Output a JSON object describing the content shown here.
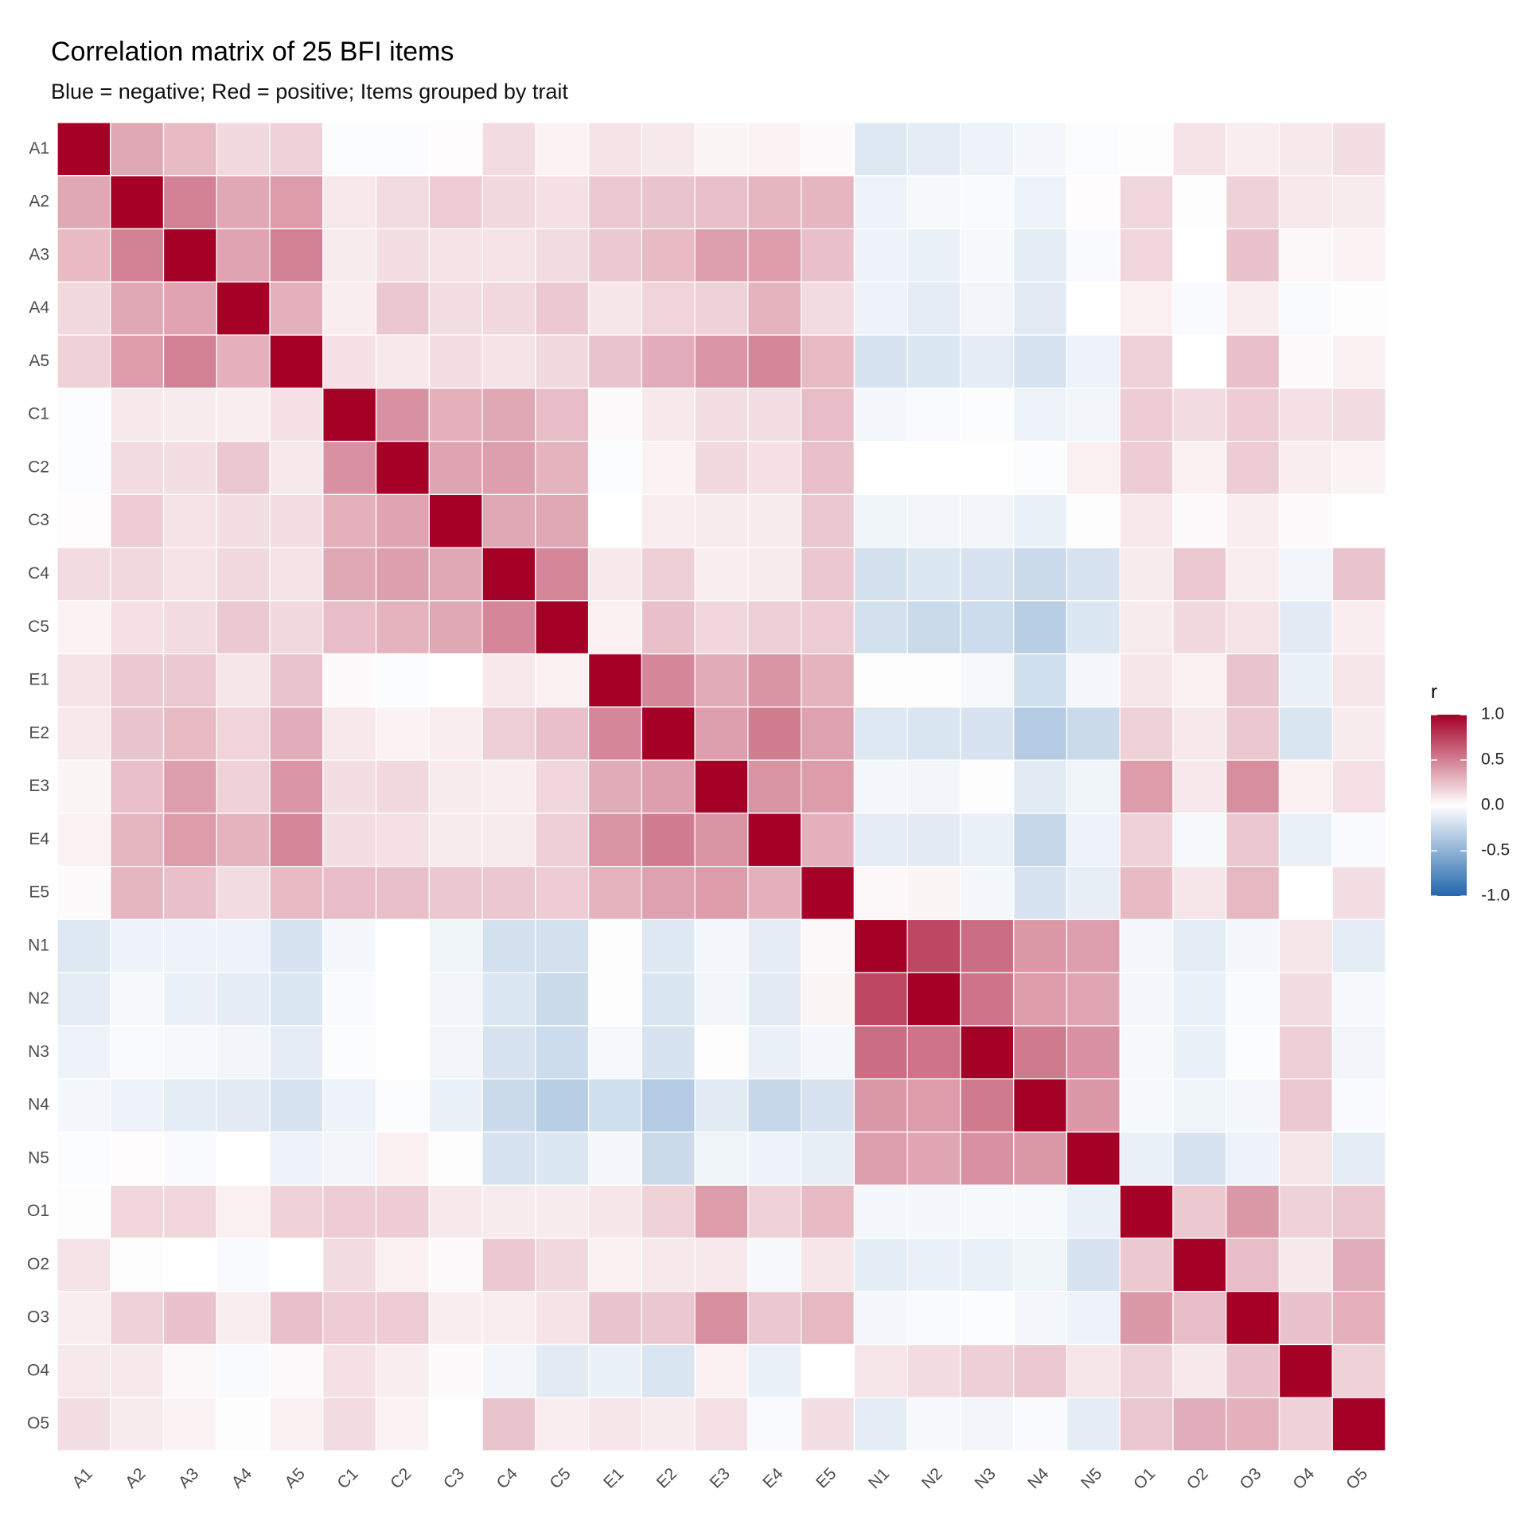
{
  "chart_data": {
    "type": "heatmap",
    "title": "Correlation matrix of 25 BFI items",
    "subtitle": "Blue = negative; Red = positive; Items grouped by trait",
    "categories": [
      "A1",
      "A2",
      "A3",
      "A4",
      "A5",
      "C1",
      "C2",
      "C3",
      "C4",
      "C5",
      "E1",
      "E2",
      "E3",
      "E4",
      "E5",
      "N1",
      "N2",
      "N3",
      "N4",
      "N5",
      "O1",
      "O2",
      "O3",
      "O4",
      "O5"
    ],
    "values": [
      [
        1,
        0.34,
        0.27,
        0.15,
        0.18,
        -0.02,
        -0.02,
        0.01,
        0.14,
        0.05,
        0.11,
        0.09,
        0.04,
        0.05,
        0.02,
        -0.15,
        -0.12,
        -0.08,
        -0.05,
        -0.02,
        -0.01,
        0.11,
        0.07,
        0.09,
        0.13
      ],
      [
        0.34,
        1,
        0.49,
        0.34,
        0.39,
        0.09,
        0.14,
        0.2,
        0.15,
        0.12,
        0.21,
        0.23,
        0.25,
        0.29,
        0.29,
        -0.08,
        -0.04,
        -0.03,
        -0.08,
        0.01,
        0.16,
        -0.01,
        0.18,
        0.09,
        0.08
      ],
      [
        0.27,
        0.49,
        1,
        0.36,
        0.5,
        0.08,
        0.13,
        0.11,
        0.11,
        0.14,
        0.21,
        0.27,
        0.38,
        0.39,
        0.25,
        -0.08,
        -0.09,
        -0.04,
        -0.12,
        -0.03,
        0.16,
        0,
        0.24,
        0.03,
        0.05
      ],
      [
        0.15,
        0.34,
        0.36,
        1,
        0.31,
        0.07,
        0.22,
        0.13,
        0.15,
        0.21,
        0.1,
        0.17,
        0.18,
        0.3,
        0.14,
        -0.08,
        -0.12,
        -0.06,
        -0.13,
        0,
        0.06,
        -0.03,
        0.07,
        -0.03,
        -0.01
      ],
      [
        0.18,
        0.39,
        0.5,
        0.31,
        1,
        0.12,
        0.09,
        0.13,
        0.11,
        0.15,
        0.23,
        0.32,
        0.41,
        0.48,
        0.27,
        -0.18,
        -0.16,
        -0.12,
        -0.18,
        -0.08,
        0.18,
        0,
        0.25,
        0.02,
        0.06
      ],
      [
        -0.02,
        0.09,
        0.08,
        0.07,
        0.12,
        1,
        0.43,
        0.31,
        0.34,
        0.26,
        0.02,
        0.09,
        0.13,
        0.13,
        0.26,
        -0.05,
        -0.03,
        -0.02,
        -0.08,
        -0.06,
        0.2,
        0.14,
        0.2,
        0.12,
        0.14
      ],
      [
        -0.02,
        0.14,
        0.13,
        0.22,
        0.09,
        0.43,
        1,
        0.36,
        0.38,
        0.3,
        -0.02,
        0.05,
        0.15,
        0.12,
        0.25,
        0,
        0,
        0,
        -0.02,
        0.06,
        0.2,
        0.06,
        0.2,
        0.07,
        0.05
      ],
      [
        0.01,
        0.2,
        0.11,
        0.13,
        0.13,
        0.31,
        0.36,
        1,
        0.34,
        0.34,
        0,
        0.07,
        0.08,
        0.08,
        0.22,
        -0.07,
        -0.06,
        -0.06,
        -0.09,
        -0.01,
        0.09,
        0.02,
        0.07,
        0.02,
        0
      ],
      [
        0.14,
        0.15,
        0.11,
        0.15,
        0.11,
        0.34,
        0.38,
        0.34,
        1,
        0.47,
        0.09,
        0.19,
        0.07,
        0.08,
        0.22,
        -0.2,
        -0.16,
        -0.18,
        -0.24,
        -0.18,
        0.08,
        0.21,
        0.07,
        -0.06,
        0.23
      ],
      [
        0.05,
        0.12,
        0.14,
        0.21,
        0.15,
        0.26,
        0.3,
        0.34,
        0.47,
        1,
        0.06,
        0.25,
        0.16,
        0.19,
        0.2,
        -0.2,
        -0.24,
        -0.23,
        -0.32,
        -0.16,
        0.08,
        0.15,
        0.11,
        -0.13,
        0.07
      ],
      [
        0.11,
        0.21,
        0.21,
        0.1,
        0.23,
        0.02,
        -0.02,
        0,
        0.09,
        0.06,
        1,
        0.47,
        0.33,
        0.42,
        0.3,
        -0.01,
        -0.01,
        -0.04,
        -0.21,
        -0.05,
        0.1,
        0.06,
        0.23,
        -0.09,
        0.1
      ],
      [
        0.09,
        0.23,
        0.27,
        0.17,
        0.32,
        0.09,
        0.05,
        0.07,
        0.19,
        0.25,
        0.47,
        1,
        0.38,
        0.51,
        0.37,
        -0.15,
        -0.17,
        -0.18,
        -0.34,
        -0.24,
        0.18,
        0.09,
        0.22,
        -0.17,
        0.08
      ],
      [
        0.04,
        0.25,
        0.38,
        0.18,
        0.41,
        0.13,
        0.15,
        0.08,
        0.07,
        0.16,
        0.33,
        0.38,
        1,
        0.42,
        0.39,
        -0.05,
        -0.06,
        -0.01,
        -0.13,
        -0.07,
        0.39,
        0.09,
        0.44,
        0.06,
        0.12
      ],
      [
        0.05,
        0.29,
        0.39,
        0.3,
        0.48,
        0.13,
        0.12,
        0.08,
        0.08,
        0.19,
        0.42,
        0.51,
        0.42,
        1,
        0.31,
        -0.12,
        -0.13,
        -0.1,
        -0.26,
        -0.08,
        0.18,
        -0.04,
        0.22,
        -0.1,
        -0.03
      ],
      [
        0.02,
        0.29,
        0.25,
        0.14,
        0.27,
        0.26,
        0.25,
        0.22,
        0.22,
        0.2,
        0.3,
        0.37,
        0.39,
        0.31,
        1,
        0.03,
        0.04,
        -0.05,
        -0.18,
        -0.11,
        0.27,
        0.1,
        0.28,
        0,
        0.13
      ],
      [
        -0.15,
        -0.08,
        -0.08,
        -0.08,
        -0.18,
        -0.05,
        0,
        -0.07,
        -0.2,
        -0.2,
        -0.01,
        -0.15,
        -0.05,
        -0.12,
        0.03,
        1,
        0.72,
        0.57,
        0.4,
        0.38,
        -0.05,
        -0.12,
        -0.05,
        0.1,
        -0.12
      ],
      [
        -0.12,
        -0.04,
        -0.09,
        -0.12,
        -0.16,
        -0.03,
        0,
        -0.06,
        -0.16,
        -0.24,
        -0.01,
        -0.17,
        -0.06,
        -0.13,
        0.04,
        0.72,
        1,
        0.55,
        0.39,
        0.35,
        -0.05,
        -0.1,
        -0.03,
        0.14,
        -0.04
      ],
      [
        -0.08,
        -0.03,
        -0.04,
        -0.06,
        -0.12,
        -0.02,
        0,
        -0.06,
        -0.18,
        -0.23,
        -0.04,
        -0.18,
        -0.01,
        -0.1,
        -0.05,
        0.57,
        0.55,
        1,
        0.52,
        0.43,
        -0.04,
        -0.1,
        -0.02,
        0.19,
        -0.06
      ],
      [
        -0.05,
        -0.08,
        -0.12,
        -0.13,
        -0.18,
        -0.08,
        -0.02,
        -0.09,
        -0.24,
        -0.32,
        -0.21,
        -0.34,
        -0.13,
        -0.26,
        -0.18,
        0.4,
        0.39,
        0.52,
        1,
        0.4,
        -0.04,
        -0.07,
        -0.05,
        0.21,
        -0.03
      ],
      [
        -0.02,
        0.01,
        -0.03,
        0,
        -0.08,
        -0.06,
        0.06,
        -0.01,
        -0.18,
        -0.16,
        -0.05,
        -0.24,
        -0.07,
        -0.08,
        -0.11,
        0.38,
        0.35,
        0.43,
        0.4,
        1,
        -0.1,
        -0.18,
        -0.08,
        0.1,
        -0.12
      ],
      [
        -0.01,
        0.16,
        0.16,
        0.06,
        0.18,
        0.2,
        0.2,
        0.09,
        0.08,
        0.08,
        0.1,
        0.18,
        0.39,
        0.18,
        0.27,
        -0.05,
        -0.05,
        -0.04,
        -0.04,
        -0.1,
        1,
        0.21,
        0.4,
        0.18,
        0.22
      ],
      [
        0.11,
        -0.01,
        0,
        -0.03,
        0,
        0.14,
        0.06,
        0.02,
        0.21,
        0.15,
        0.06,
        0.09,
        0.09,
        -0.04,
        0.1,
        -0.12,
        -0.1,
        -0.1,
        -0.07,
        -0.18,
        0.21,
        1,
        0.26,
        0.09,
        0.32
      ],
      [
        0.07,
        0.18,
        0.24,
        0.07,
        0.25,
        0.2,
        0.2,
        0.07,
        0.07,
        0.11,
        0.23,
        0.22,
        0.44,
        0.22,
        0.28,
        -0.05,
        -0.03,
        -0.02,
        -0.05,
        -0.08,
        0.4,
        0.26,
        1,
        0.24,
        0.31
      ],
      [
        0.09,
        0.09,
        0.03,
        -0.03,
        0.02,
        0.12,
        0.07,
        0.02,
        -0.06,
        -0.13,
        -0.09,
        -0.17,
        0.06,
        -0.1,
        0,
        0.1,
        0.14,
        0.19,
        0.21,
        0.1,
        0.18,
        0.09,
        0.24,
        1,
        0.18
      ],
      [
        0.13,
        0.08,
        0.05,
        -0.01,
        0.06,
        0.14,
        0.05,
        0,
        0.23,
        0.07,
        0.1,
        0.08,
        0.12,
        -0.03,
        0.13,
        -0.12,
        -0.04,
        -0.06,
        -0.03,
        -0.12,
        0.22,
        0.32,
        0.31,
        0.18,
        1
      ]
    ],
    "legend_title": "r",
    "colorlim": [
      -1,
      1
    ],
    "colorbar_ticks": [
      {
        "value": 1,
        "label": "1.0"
      },
      0.5,
      {
        "value": 0,
        "label": "0.0"
      },
      -0.5,
      {
        "value": -1,
        "label": "-1.0"
      }
    ],
    "low_color": "#2166AC",
    "mid_color": "#FFFFFF",
    "high_color": "#A50026"
  }
}
